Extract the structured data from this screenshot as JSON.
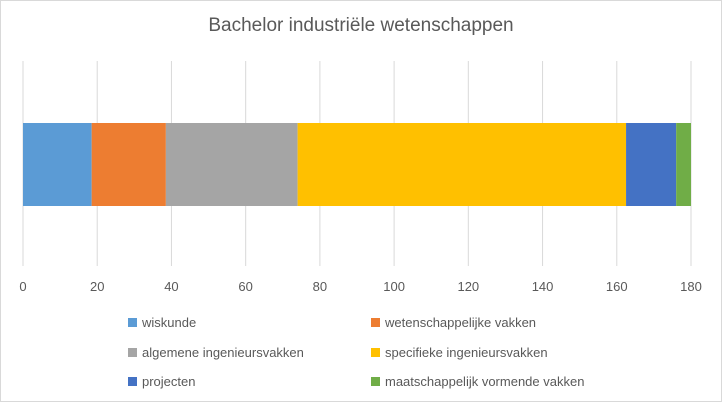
{
  "chart_data": {
    "type": "bar",
    "orientation": "horizontal",
    "stacked": true,
    "title": "Bachelor industriële wetenschappen",
    "xlim": [
      0,
      180
    ],
    "xticks": [
      "0",
      "20",
      "40",
      "60",
      "80",
      "100",
      "120",
      "140",
      "160",
      "180"
    ],
    "grid": true,
    "legend_placement": "bottom",
    "series": [
      {
        "name": "wiskunde",
        "values": [
          18.5
        ],
        "color": "#5B9BD5"
      },
      {
        "name": "wetenschappelijke vakken",
        "values": [
          20
        ],
        "color": "#ED7D31"
      },
      {
        "name": "algemene ingenieursvakken",
        "values": [
          35.5
        ],
        "color": "#A5A5A5"
      },
      {
        "name": "specifieke ingenieursvakken",
        "values": [
          88.5
        ],
        "color": "#FFC000"
      },
      {
        "name": "projecten",
        "values": [
          13.5
        ],
        "color": "#4472C4"
      },
      {
        "name": "maatschappelijk vormende vakken",
        "values": [
          4
        ],
        "color": "#70AD47"
      }
    ]
  }
}
